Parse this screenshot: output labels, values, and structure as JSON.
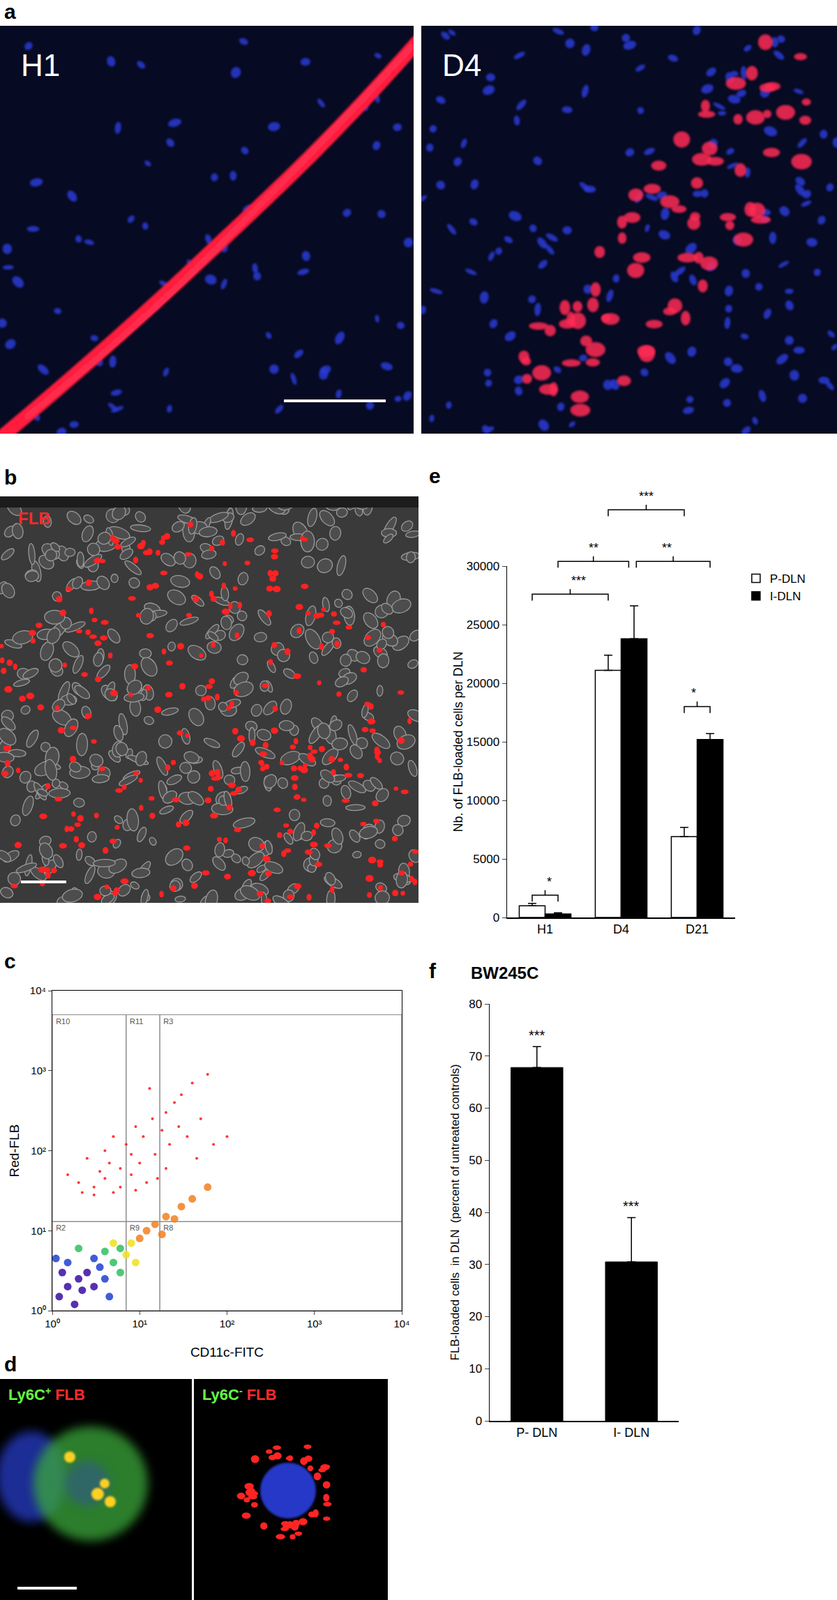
{
  "images": [
    {
      "panel": "a",
      "frames": [
        "H1",
        "D4"
      ]
    },
    {
      "panel": "b",
      "label": "FLB"
    },
    {
      "panel": "d",
      "frames": [
        {
          "stain": "Ly6C",
          "sign": "+",
          "dye": "FLB"
        },
        {
          "stain": "Ly6C",
          "sign": "-",
          "dye": "FLB"
        }
      ]
    }
  ],
  "chart_data": [
    {
      "panel": "c",
      "type": "scatter",
      "x_label": "CD11c-FITC",
      "y_label": "Red-FLB",
      "log": true,
      "grid": false,
      "xlim": [
        1,
        10000
      ],
      "ylim": [
        1,
        10000
      ],
      "xticks": [
        {
          "value": 1,
          "label": "10⁰"
        },
        {
          "value": 10,
          "label": "10¹"
        },
        {
          "value": 100,
          "label": "10²"
        },
        {
          "value": 1000,
          "label": "10³"
        },
        {
          "value": 10000,
          "label": "10⁴"
        }
      ],
      "yticks": [
        {
          "value": 1,
          "label": "10⁰"
        },
        {
          "value": 10,
          "label": "10¹"
        },
        {
          "value": 100,
          "label": "10²"
        },
        {
          "value": 1000,
          "label": "10³"
        },
        {
          "value": 10000,
          "label": "10⁴"
        }
      ],
      "gates": [
        {
          "name": "R10",
          "x": [
            1,
            7
          ],
          "y": [
            13,
            5000
          ]
        },
        {
          "name": "R11",
          "x": [
            7,
            17
          ],
          "y": [
            13,
            5000
          ]
        },
        {
          "name": "R3",
          "x": [
            17,
            10000
          ],
          "y": [
            13,
            5000
          ]
        },
        {
          "name": "R2",
          "x": [
            1,
            7
          ],
          "y": [
            1,
            13
          ]
        },
        {
          "name": "R9",
          "x": [
            7,
            17
          ],
          "y": [
            1,
            13
          ]
        },
        {
          "name": "R8",
          "x": [
            17,
            10000
          ],
          "y": [
            1,
            13
          ]
        }
      ],
      "series": [
        {
          "color": "#ff2020",
          "x": [
            2,
            3,
            4,
            5,
            6,
            2.5,
            3.5,
            8,
            10,
            12,
            15,
            7,
            9,
            5,
            4,
            11,
            14,
            18,
            20,
            25,
            30,
            40,
            22,
            28,
            35,
            50,
            60,
            13,
            6,
            16,
            3,
            2.2,
            9,
            45,
            70,
            1.5,
            100,
            20,
            8,
            4.5
          ],
          "y": [
            40,
            35,
            45,
            30,
            60,
            80,
            55,
            50,
            70,
            40,
            90,
            120,
            200,
            150,
            100,
            150,
            250,
            180,
            300,
            400,
            500,
            700,
            120,
            200,
            150,
            250,
            900,
            600,
            35,
            45,
            28,
            30,
            32,
            80,
            120,
            50,
            150,
            60,
            90,
            70
          ]
        },
        {
          "color": "#f08020",
          "x": [
            10,
            12,
            15,
            20,
            30,
            40,
            60,
            18,
            25
          ],
          "y": [
            8,
            10,
            12,
            15,
            20,
            25,
            35,
            9,
            14
          ]
        },
        {
          "color": "#f0e020",
          "x": [
            7,
            8,
            5,
            9
          ],
          "y": [
            5,
            7,
            7,
            4
          ]
        },
        {
          "color": "#2fbf5f",
          "x": [
            5,
            6,
            4,
            6,
            2
          ],
          "y": [
            4,
            3,
            5.5,
            6,
            6
          ]
        },
        {
          "color": "#1f3fd1",
          "x": [
            3.5,
            4,
            1.5,
            3,
            4.5,
            1.1
          ],
          "y": [
            3.5,
            2.5,
            4,
            4.5,
            1.5,
            4.5
          ]
        },
        {
          "color": "#3a0ca3",
          "x": [
            1.2,
            1.5,
            2,
            2.5,
            1.8,
            3,
            1.3,
            2.2
          ],
          "y": [
            1.5,
            2,
            2.5,
            3,
            1.2,
            2,
            3,
            1.8
          ]
        }
      ]
    },
    {
      "panel": "e",
      "type": "bar",
      "categories": [
        "H1",
        "D4",
        "D21"
      ],
      "y_label": "Nb. of FLB-loaded cells per DLN",
      "ylim": [
        0,
        30000
      ],
      "yticks": [
        0,
        5000,
        10000,
        15000,
        20000,
        25000,
        30000
      ],
      "grid": false,
      "legend": "top right",
      "series": [
        {
          "name": "P-DLN",
          "color": "#ffffff",
          "values": [
            1000,
            21100,
            6900
          ],
          "errors": [
            200,
            1300,
            800
          ]
        },
        {
          "name": "I-DLN",
          "color": "#000000",
          "values": [
            300,
            23800,
            15200
          ],
          "errors": [
            100,
            2800,
            500
          ]
        }
      ],
      "brackets": [
        {
          "x": [
            -0.17,
            0.17
          ],
          "y": 1900,
          "label": "*"
        },
        {
          "x": [
            -0.17,
            0.83
          ],
          "y": 27600,
          "label": "***"
        },
        {
          "x": [
            0.17,
            1.1
          ],
          "y": 30400,
          "label": "**"
        },
        {
          "x": [
            1.2,
            2.17
          ],
          "y": 30400,
          "label": "**"
        },
        {
          "x": [
            0.83,
            1.83
          ],
          "y": 34800,
          "label": "***"
        },
        {
          "x": [
            1.83,
            2.17
          ],
          "y": 18000,
          "label": "*"
        }
      ]
    },
    {
      "panel": "f",
      "type": "bar",
      "title": "BW245C",
      "categories": [
        "P- DLN",
        "I- DLN"
      ],
      "values": [
        67.8,
        30.5
      ],
      "errors": [
        4,
        8.5
      ],
      "significance": [
        "***",
        "***"
      ],
      "color": "#000000",
      "y_label": "FLB-loaded cells  in DLN  (percent of untreated controls)",
      "ylim": [
        0,
        80
      ],
      "yticks": [
        0,
        10,
        20,
        30,
        40,
        50,
        60,
        70,
        80
      ],
      "grid": false
    }
  ]
}
